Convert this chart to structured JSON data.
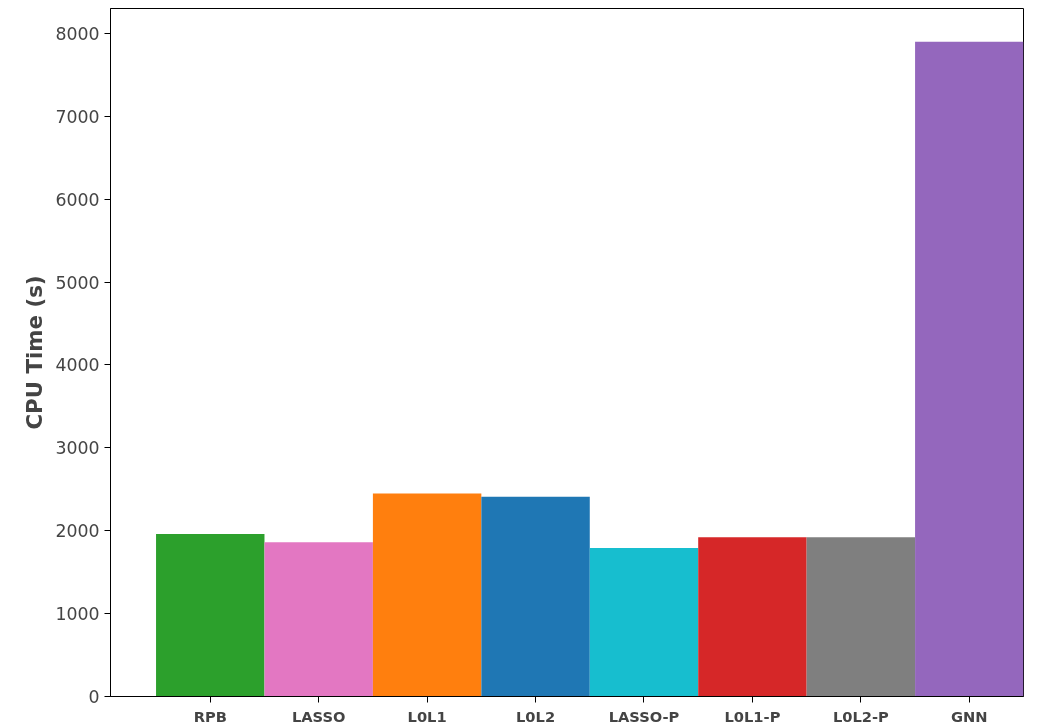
{
  "chart_data": {
    "type": "bar",
    "ylabel": "CPU Time (s)",
    "categories": [
      "RPB",
      "LASSO",
      "L0L1",
      "L0L2",
      "LASSO-P",
      "L0L1-P",
      "L0L2-P",
      "GNN"
    ],
    "values": [
      1960,
      1860,
      2450,
      2410,
      1790,
      1920,
      1920,
      7900
    ],
    "colors": [
      "#2ca02c",
      "#e377c2",
      "#ff7f0e",
      "#1f77b4",
      "#17becf",
      "#d62728",
      "#7f7f7f",
      "#9467bd"
    ],
    "ylim": [
      0,
      8300
    ],
    "yticks": [
      0,
      1000,
      2000,
      3000,
      4000,
      5000,
      6000,
      7000,
      8000
    ],
    "grid": false
  }
}
